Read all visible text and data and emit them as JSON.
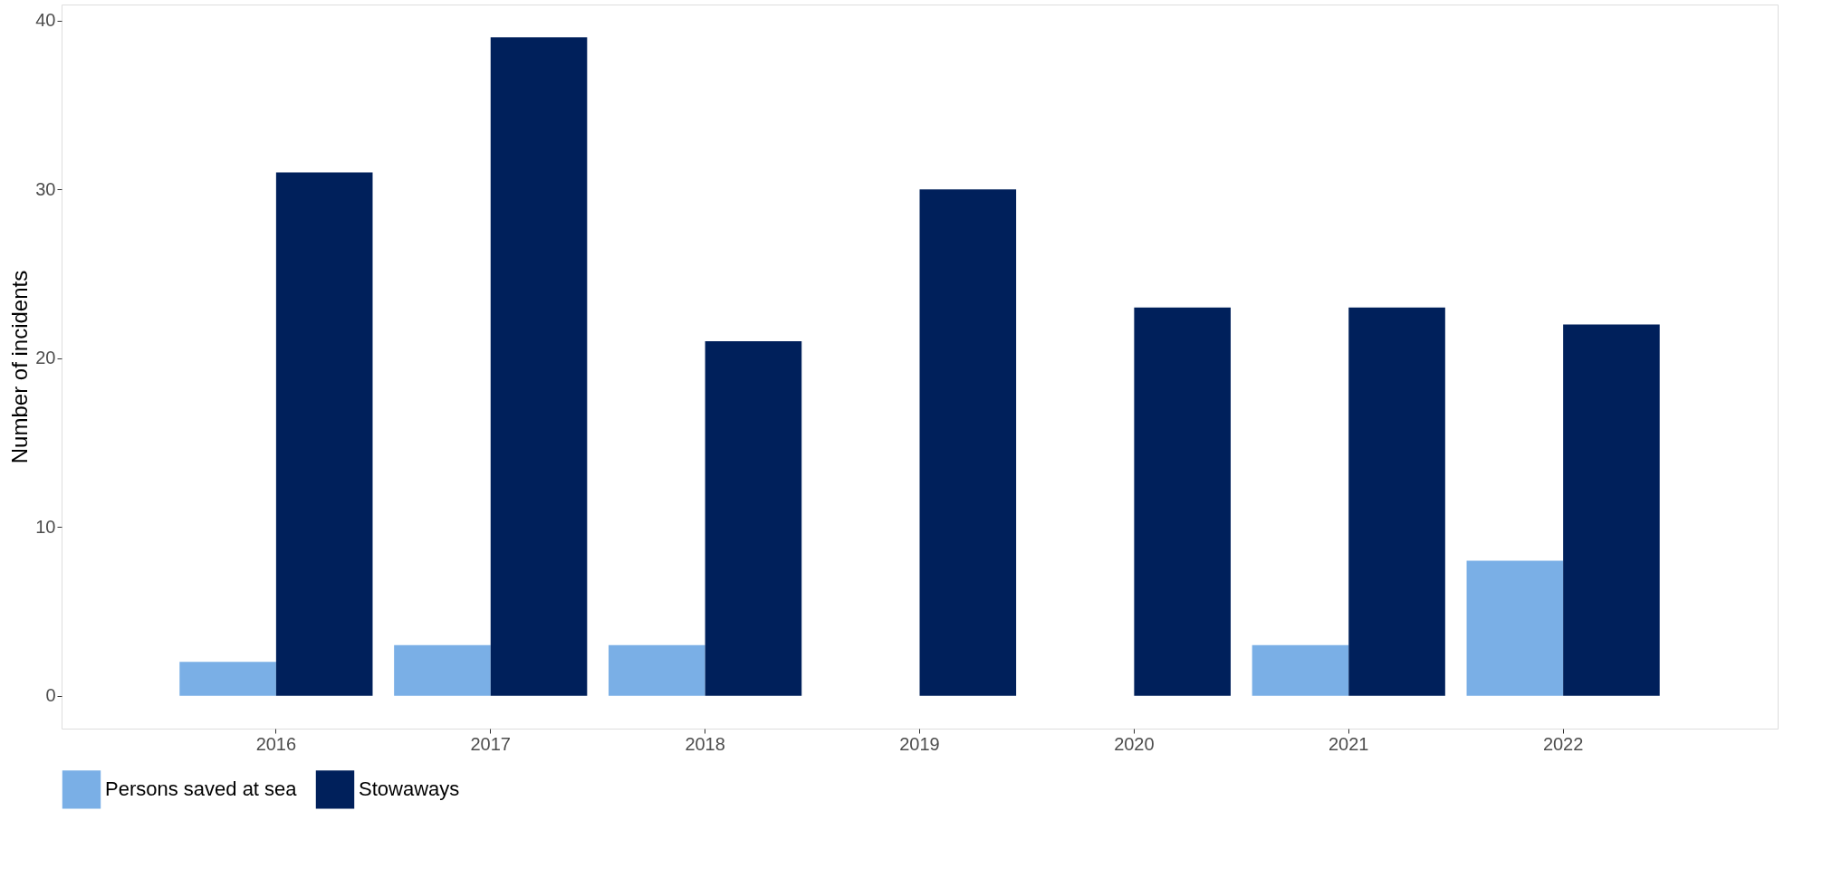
{
  "chart_data": {
    "type": "bar",
    "ylabel": "Number of incidents",
    "categories": [
      "2016",
      "2017",
      "2018",
      "2019",
      "2020",
      "2021",
      "2022"
    ],
    "series": [
      {
        "name": "Persons saved at sea",
        "color": "#7aafe6",
        "values": [
          2,
          3,
          3,
          0,
          0,
          3,
          8
        ]
      },
      {
        "name": "Stowaways",
        "color": "#00205b",
        "values": [
          31,
          39,
          21,
          30,
          23,
          23,
          22
        ]
      }
    ],
    "ylim": [
      -1.95,
      40.95
    ],
    "yticks": [
      0,
      10,
      20,
      30,
      40
    ],
    "grid": false,
    "legend": "bottom"
  }
}
